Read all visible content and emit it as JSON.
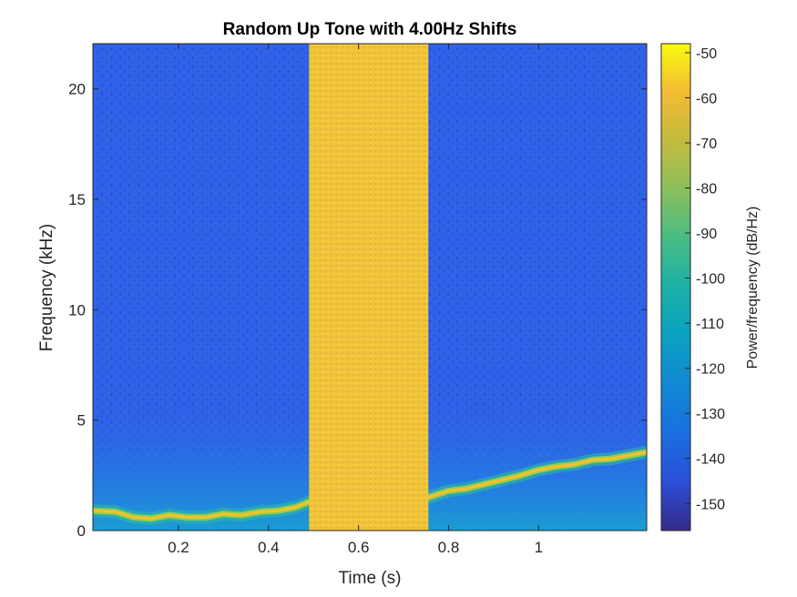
{
  "chart_data": {
    "type": "heatmap",
    "title": "Random Up Tone with 4.00Hz Shifts",
    "xlabel": "Time (s)",
    "ylabel": "Frequency (kHz)",
    "colorbar_label": "Power/frequency (dB/Hz)",
    "xlim": [
      0.01,
      1.24
    ],
    "ylim": [
      0,
      22.05
    ],
    "clim": [
      -156,
      -48
    ],
    "x_ticks": [
      0.2,
      0.4,
      0.6,
      0.8,
      1
    ],
    "x_tick_labels": [
      "0.2",
      "0.4",
      "0.6",
      "0.8",
      "1"
    ],
    "y_ticks": [
      0,
      5,
      10,
      15,
      20
    ],
    "y_tick_labels": [
      "0",
      "5",
      "10",
      "15",
      "20"
    ],
    "colorbar_ticks": [
      -50,
      -60,
      -70,
      -80,
      -90,
      -100,
      -110,
      -120,
      -130,
      -140,
      -150
    ],
    "colorbar_tick_labels": [
      "-50",
      "-60",
      "-70",
      "-80",
      "-90",
      "-100",
      "-110",
      "-120",
      "-130",
      "-140",
      "-150"
    ],
    "colormap": "parula",
    "background_level_db": -140,
    "low_freq_level_db": -125,
    "noise_burst": {
      "t_start": 0.49,
      "t_end": 0.755,
      "level_db": -65
    },
    "tone": {
      "level_db": -70,
      "points": [
        {
          "t": 0.01,
          "f": 0.9
        },
        {
          "t": 0.06,
          "f": 0.85
        },
        {
          "t": 0.1,
          "f": 0.6
        },
        {
          "t": 0.14,
          "f": 0.55
        },
        {
          "t": 0.18,
          "f": 0.7
        },
        {
          "t": 0.22,
          "f": 0.6
        },
        {
          "t": 0.26,
          "f": 0.6
        },
        {
          "t": 0.3,
          "f": 0.75
        },
        {
          "t": 0.34,
          "f": 0.7
        },
        {
          "t": 0.38,
          "f": 0.85
        },
        {
          "t": 0.42,
          "f": 0.9
        },
        {
          "t": 0.46,
          "f": 1.05
        },
        {
          "t": 0.49,
          "f": 1.3
        },
        {
          "t": 0.755,
          "f": 1.5
        },
        {
          "t": 0.8,
          "f": 1.8
        },
        {
          "t": 0.84,
          "f": 1.9
        },
        {
          "t": 0.88,
          "f": 2.1
        },
        {
          "t": 0.92,
          "f": 2.3
        },
        {
          "t": 0.96,
          "f": 2.5
        },
        {
          "t": 1.0,
          "f": 2.75
        },
        {
          "t": 1.04,
          "f": 2.9
        },
        {
          "t": 1.08,
          "f": 3.0
        },
        {
          "t": 1.12,
          "f": 3.2
        },
        {
          "t": 1.16,
          "f": 3.25
        },
        {
          "t": 1.2,
          "f": 3.4
        },
        {
          "t": 1.24,
          "f": 3.55
        }
      ]
    }
  }
}
